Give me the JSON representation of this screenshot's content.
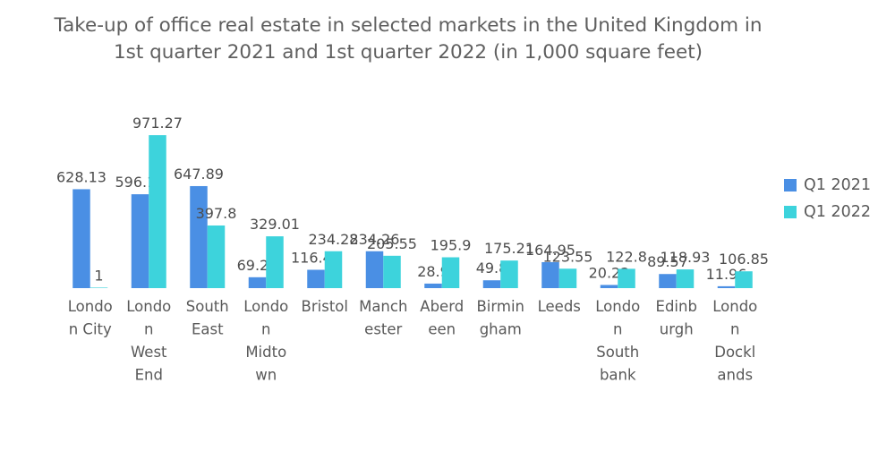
{
  "chart_data": {
    "type": "bar",
    "title_lines": [
      "Take-up of office real estate in selected markets in the United Kingdom in",
      "1st quarter 2021 and 1st quarter 2022 (in 1,000 square feet)"
    ],
    "categories": [
      [
        "Londo",
        "n City"
      ],
      [
        "Londo",
        "n",
        "West",
        "End"
      ],
      [
        "South",
        "East"
      ],
      [
        "Londo",
        "n",
        "Midto",
        "wn"
      ],
      [
        "Bristol"
      ],
      [
        "Manch",
        "ester"
      ],
      [
        "Aberd",
        "een"
      ],
      [
        "Birmin",
        "gham"
      ],
      [
        "Leeds"
      ],
      [
        "Londo",
        "n",
        "South",
        "bank"
      ],
      [
        "Edinb",
        "urgh"
      ],
      [
        "Londo",
        "n",
        "Dockl",
        "ands"
      ]
    ],
    "series": [
      {
        "name": "Q1 2021",
        "color": "#4a8fe4",
        "values": [
          628.13,
          596.17,
          647.89,
          69.26,
          116.45,
          234.26,
          28.9,
          49.8,
          164.95,
          20.22,
          89.57,
          11.96
        ]
      },
      {
        "name": "Q1 2022",
        "color": "#3dd3dc",
        "values": [
          1,
          971.27,
          397.8,
          329.01,
          234.28,
          205.55,
          195.9,
          175.21,
          123.55,
          122.8,
          118.93,
          106.85
        ]
      }
    ],
    "ylim": [
      0,
      1000
    ],
    "grid": false,
    "legend": "right"
  }
}
